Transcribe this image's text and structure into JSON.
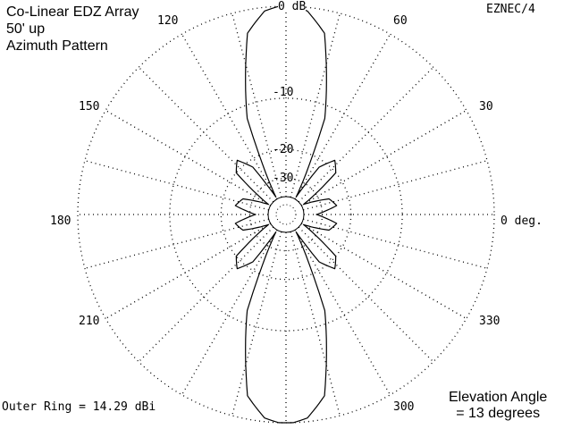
{
  "window": {
    "program": "EZNEC/4"
  },
  "plot_title": {
    "line1": "Co-Linear EDZ Array",
    "line2": "50' up",
    "line3": "Azimuth Pattern"
  },
  "footer": {
    "outer_ring": "Outer Ring = 14.29 dBi",
    "elevation_line1": "Elevation Angle",
    "elevation_line2": "= 13 degrees"
  },
  "azimuth_labels": {
    "a0": "0 deg.",
    "a30": "30",
    "a60": "60",
    "a120": "120",
    "a150": "150",
    "a180": "180",
    "a210": "210",
    "a300": "300",
    "a330": "330"
  },
  "ring_labels": {
    "r0": "0 dB",
    "r10": "-10",
    "r20": "-20",
    "r30": "-30"
  },
  "chart_data": {
    "type": "polar",
    "angular_unit": "degrees",
    "radial_unit": "dB",
    "rings_db": [
      0,
      -10,
      -20,
      -30
    ],
    "grid": "dotted",
    "outer_ring_gain_dbi": 14.29,
    "elevation_angle_deg": 13,
    "pattern": {
      "azimuth_deg": [
        0,
        10,
        20,
        30,
        40,
        48,
        55,
        60,
        68,
        78,
        84,
        88,
        90,
        92,
        96,
        102,
        112,
        120,
        125,
        132,
        140,
        150,
        160,
        170,
        180
      ],
      "gain_db": [
        -33,
        -24,
        -26,
        -40,
        -20,
        -18,
        -22,
        -40,
        -12,
        -2,
        -0.3,
        0,
        0,
        0,
        -0.3,
        -2,
        -12,
        -40,
        -22,
        -18,
        -20,
        -40,
        -26,
        -24,
        -33
      ]
    }
  }
}
